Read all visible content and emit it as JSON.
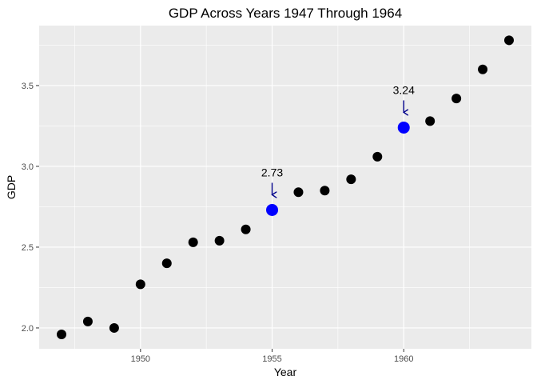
{
  "chart_data": {
    "type": "scatter",
    "title": "GDP Across Years 1947 Through 1964",
    "xlabel": "Year",
    "ylabel": "GDP",
    "xlim": [
      1946.15,
      1964.85
    ],
    "ylim": [
      1.871,
      3.871
    ],
    "x_ticks": [
      1950,
      1955,
      1960
    ],
    "y_ticks": [
      2.0,
      2.5,
      3.0,
      3.5
    ],
    "y_tick_labels": [
      "2.0",
      "2.5",
      "3.0",
      "3.5"
    ],
    "grid": true,
    "legend": "none",
    "colors": {
      "panel_background": "#ebebeb",
      "grid": "#ffffff",
      "point": "#000000",
      "highlight": "#0000ff",
      "arrow": "#00008b"
    },
    "points": [
      {
        "x": 1947,
        "y": 1.96
      },
      {
        "x": 1948,
        "y": 2.04
      },
      {
        "x": 1949,
        "y": 2.0
      },
      {
        "x": 1950,
        "y": 2.27
      },
      {
        "x": 1951,
        "y": 2.4
      },
      {
        "x": 1952,
        "y": 2.53
      },
      {
        "x": 1953,
        "y": 2.54
      },
      {
        "x": 1954,
        "y": 2.61
      },
      {
        "x": 1955,
        "y": 2.73,
        "highlight": true
      },
      {
        "x": 1956,
        "y": 2.84
      },
      {
        "x": 1957,
        "y": 2.85
      },
      {
        "x": 1958,
        "y": 2.92
      },
      {
        "x": 1959,
        "y": 3.06
      },
      {
        "x": 1960,
        "y": 3.24,
        "highlight": true
      },
      {
        "x": 1961,
        "y": 3.28
      },
      {
        "x": 1962,
        "y": 3.42
      },
      {
        "x": 1963,
        "y": 3.6
      },
      {
        "x": 1964,
        "y": 3.78
      }
    ],
    "annotations": [
      {
        "x": 1955,
        "y": 2.73,
        "label": "2.73"
      },
      {
        "x": 1960,
        "y": 3.24,
        "label": "3.24"
      }
    ]
  }
}
